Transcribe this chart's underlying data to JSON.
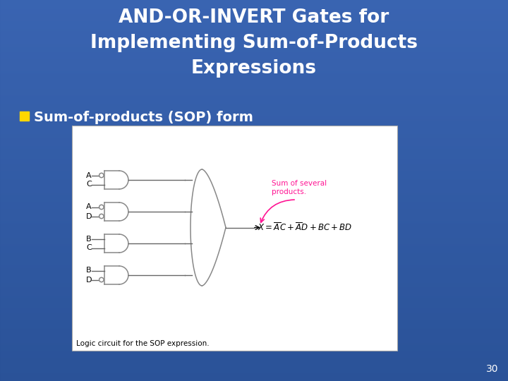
{
  "title": "AND-OR-INVERT Gates for\nImplementing Sum-of-Products\nExpressions",
  "bullet_text": "Sum-of-products (SOP) form",
  "bullet_color": "#FFD700",
  "title_color": "#FFFFFF",
  "bullet_text_color": "#FFFFFF",
  "bg_color": "#1a3870",
  "slide_number": "30",
  "diagram_caption": "Logic circuit for the SOP expression.",
  "annotation_text": "Sum of several\nproducts.",
  "annotation_color": "#FF1493",
  "gate_color": "#888888",
  "wire_color": "#666666"
}
